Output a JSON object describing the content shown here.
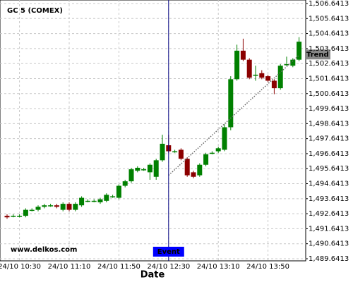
{
  "chart_data": {
    "type": "candlestick",
    "title": "GC 5 (COMEX)",
    "x_label": "Date",
    "watermark": "www.delkos.com",
    "event_label": "Event",
    "event_at": "24/10 12:30",
    "trend_label": "Trend",
    "trend_start": [
      "24/10 12:30",
      1495.2
    ],
    "trend_end": [
      "24/10 14:15",
      1503.2
    ],
    "up_color": "#008000",
    "down_color": "#8b0000",
    "grid": true,
    "categories": [
      "24/10 10:20",
      "24/10 10:25",
      "24/10 10:30",
      "24/10 10:35",
      "24/10 10:40",
      "24/10 10:45",
      "24/10 10:50",
      "24/10 10:55",
      "24/10 11:00",
      "24/10 11:05",
      "24/10 11:10",
      "24/10 11:15",
      "24/10 11:20",
      "24/10 11:25",
      "24/10 11:30",
      "24/10 11:35",
      "24/10 11:40",
      "24/10 11:45",
      "24/10 11:50",
      "24/10 11:55",
      "24/10 12:00",
      "24/10 12:05",
      "24/10 12:10",
      "24/10 12:15",
      "24/10 12:20",
      "24/10 12:25",
      "24/10 12:30",
      "24/10 12:35",
      "24/10 12:40",
      "24/10 12:45",
      "24/10 12:50",
      "24/10 12:55",
      "24/10 13:00",
      "24/10 13:05",
      "24/10 13:10",
      "24/10 13:15",
      "24/10 13:20",
      "24/10 13:25",
      "24/10 13:30",
      "24/10 13:35",
      "24/10 13:40",
      "24/10 13:45",
      "24/10 13:50",
      "24/10 13:55",
      "24/10 14:00",
      "24/10 14:05",
      "24/10 14:10",
      "24/10 14:15"
    ],
    "open": [
      1492.5,
      1492.5,
      1492.5,
      1492.5,
      1492.9,
      1492.9,
      1493.1,
      1493.2,
      1493.2,
      1492.9,
      1493.3,
      1492.9,
      1493.2,
      1493.5,
      1493.5,
      1493.4,
      1493.5,
      1493.8,
      1493.7,
      1494.5,
      1494.8,
      1495.5,
      1495.6,
      1495.4,
      1495.1,
      1496.2,
      1497.2,
      1496.8,
      1496.9,
      1496.3,
      1495.4,
      1495.2,
      1495.9,
      1496.7,
      1496.8,
      1496.9,
      1498.4,
      1501.6,
      1503.5,
      1502.9,
      1501.9,
      1502.0,
      1501.8,
      1501.5,
      1501.0,
      1502.6,
      1502.5,
      1502.9
    ],
    "high": [
      1492.6,
      1492.6,
      1492.6,
      1493.0,
      1493.0,
      1493.2,
      1493.3,
      1493.3,
      1493.3,
      1493.4,
      1493.4,
      1493.4,
      1493.8,
      1493.6,
      1493.6,
      1493.7,
      1494.0,
      1493.9,
      1494.6,
      1494.9,
      1495.7,
      1495.8,
      1495.7,
      1496.0,
      1496.3,
      1497.9,
      1497.9,
      1496.9,
      1497.0,
      1496.4,
      1495.5,
      1496.0,
      1496.7,
      1496.8,
      1497.1,
      1498.6,
      1501.8,
      1503.9,
      1504.3,
      1503.0,
      1502.5,
      1502.2,
      1501.9,
      1501.6,
      1502.6,
      1503.1,
      1503.0,
      1504.4
    ],
    "low": [
      1492.3,
      1492.4,
      1492.4,
      1492.4,
      1492.8,
      1492.8,
      1493.0,
      1493.1,
      1493.0,
      1492.8,
      1492.8,
      1492.8,
      1493.1,
      1493.4,
      1493.4,
      1493.3,
      1493.4,
      1493.7,
      1493.6,
      1494.4,
      1494.7,
      1495.4,
      1495.5,
      1494.9,
      1494.9,
      1496.1,
      1496.7,
      1496.7,
      1496.2,
      1495.1,
      1495.0,
      1495.1,
      1495.8,
      1496.6,
      1496.7,
      1496.8,
      1498.2,
      1501.5,
      1502.8,
      1501.6,
      1501.5,
      1501.6,
      1501.4,
      1500.6,
      1500.9,
      1502.5,
      1502.4,
      1502.8
    ],
    "close": [
      1492.4,
      1492.5,
      1492.5,
      1492.9,
      1492.9,
      1493.1,
      1493.2,
      1493.2,
      1493.1,
      1493.3,
      1492.9,
      1493.3,
      1493.7,
      1493.5,
      1493.5,
      1493.6,
      1493.9,
      1493.8,
      1494.5,
      1494.8,
      1495.6,
      1495.7,
      1495.6,
      1495.9,
      1496.2,
      1497.3,
      1496.8,
      1496.8,
      1496.3,
      1495.2,
      1495.1,
      1495.9,
      1496.6,
      1496.7,
      1497.0,
      1498.4,
      1501.6,
      1503.5,
      1502.9,
      1501.7,
      1501.9,
      1501.7,
      1501.5,
      1501.0,
      1502.5,
      1502.6,
      1502.9,
      1504.1
    ],
    "ylim": [
      1489.6413,
      1506.6413
    ],
    "yticks": [
      {
        "value": 1489.6413,
        "label": "1,489.6413"
      },
      {
        "value": 1490.6413,
        "label": "1,490.6413"
      },
      {
        "value": 1491.6413,
        "label": "1,491.6413"
      },
      {
        "value": 1492.6413,
        "label": "1,492.6413"
      },
      {
        "value": 1493.6413,
        "label": "1,493.6413"
      },
      {
        "value": 1494.6413,
        "label": "1,494.6413"
      },
      {
        "value": 1495.6413,
        "label": "1,495.6413"
      },
      {
        "value": 1496.6413,
        "label": "1,496.6413"
      },
      {
        "value": 1497.6413,
        "label": "1,497.6413"
      },
      {
        "value": 1498.6413,
        "label": "1,498.6413"
      },
      {
        "value": 1499.6413,
        "label": "1,499.6413"
      },
      {
        "value": 1500.6413,
        "label": "1,500.6413"
      },
      {
        "value": 1501.6413,
        "label": "1,501.6413"
      },
      {
        "value": 1502.6413,
        "label": "1,502.6413"
      },
      {
        "value": 1503.6413,
        "label": "1,503.6413"
      },
      {
        "value": 1504.6413,
        "label": "1,504.6413"
      },
      {
        "value": 1505.6413,
        "label": "1,505.6413"
      },
      {
        "value": 1506.6413,
        "label": "1,506.6413"
      }
    ],
    "xticks": [
      "24/10 10:30",
      "24/10 11:10",
      "24/10 11:50",
      "24/10 12:30",
      "24/10 13:10",
      "24/10 13:50"
    ]
  }
}
